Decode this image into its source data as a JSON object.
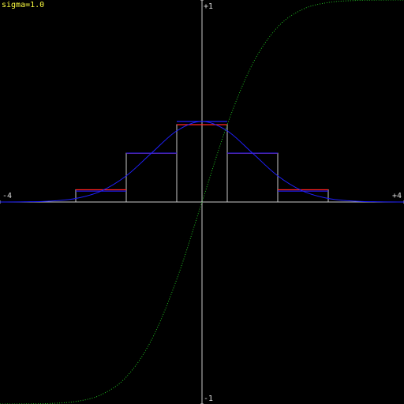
{
  "chart_data": {
    "type": "line",
    "annotation": "sigma=1.0",
    "xlim": [
      -4,
      4
    ],
    "ylim": [
      -1,
      1
    ],
    "xticks": [
      {
        "value": -4,
        "label": "-4"
      },
      {
        "value": 4,
        "label": "+4"
      }
    ],
    "yticks": [
      {
        "value": 1,
        "label": "+1"
      },
      -1
    ],
    "x": [
      -4,
      -3.5,
      -3,
      -2.5,
      -2,
      -1.5,
      -1,
      -0.5,
      0,
      0.5,
      1,
      1.5,
      2,
      2.5,
      3,
      3.5,
      4
    ],
    "series": [
      {
        "color": "#2020ff",
        "values": [
          0.0001,
          0.0009,
          0.0044,
          0.0175,
          0.054,
          0.1295,
          0.242,
          0.3521,
          0.3989,
          0.3521,
          0.242,
          0.1295,
          0.054,
          0.0175,
          0.0044,
          0.0009,
          0.0001
        ]
      },
      {
        "color": "#20c020",
        "dotted": true,
        "values": [
          -0.9999,
          -0.9995,
          -0.9973,
          -0.9876,
          -0.9545,
          -0.8664,
          -0.6827,
          -0.3829,
          0,
          0.3829,
          0.6827,
          0.8664,
          0.9545,
          0.9876,
          0.9973,
          0.9995,
          0.9999
        ]
      }
    ],
    "bins": [
      -2.5,
      -1.5,
      -0.5,
      0.5,
      1.5,
      2.5
    ],
    "bar_values": [
      0.0606,
      0.2417,
      0.3829,
      0.2417,
      0.0606
    ],
    "bar_color": "#c8c8c8",
    "red_values": [
      0.0606,
      0.2417,
      0.3829,
      0.2417,
      0.0606
    ],
    "red_color": "#ff2020",
    "blue_values": [
      0.054,
      0.242,
      0.3989,
      0.242,
      0.054
    ],
    "blue_color": "#2020ff"
  }
}
